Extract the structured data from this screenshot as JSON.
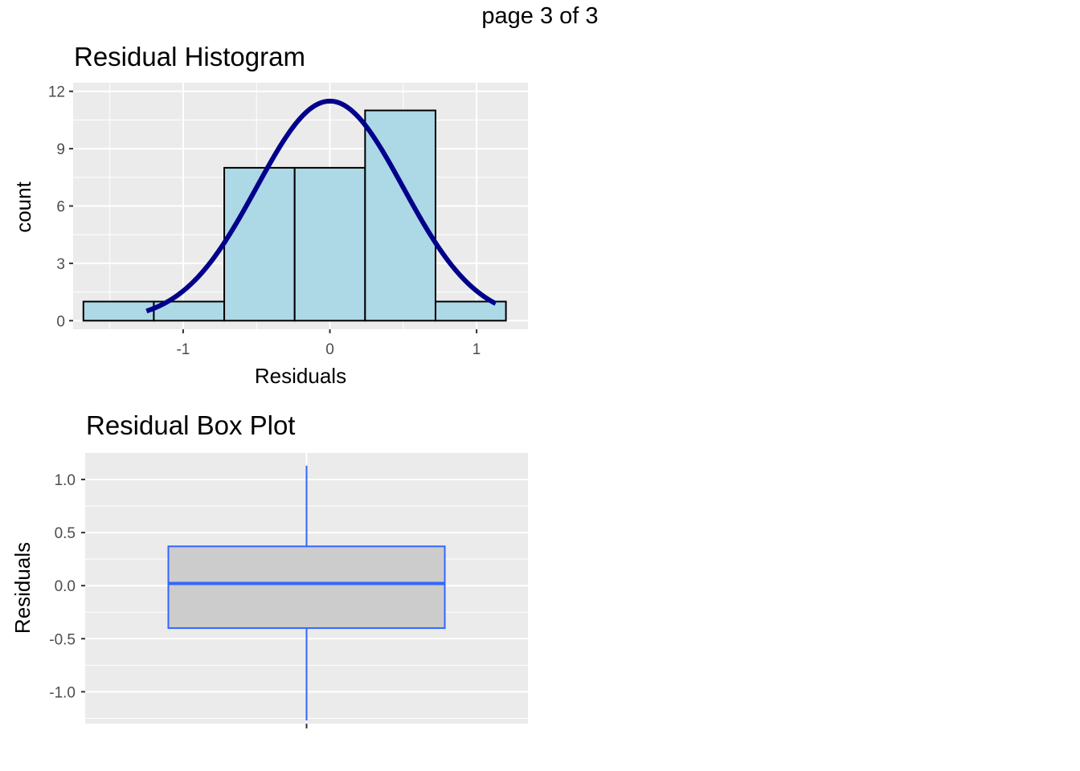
{
  "page_header": "page 3 of 3",
  "colors": {
    "panel_bg": "#ebebeb",
    "grid": "#ffffff",
    "bar_fill": "#add8e6",
    "bar_stroke": "#000000",
    "curve": "#00008b",
    "box_fill": "#cccccc",
    "box_stroke": "#3366ff",
    "tick_text": "#4d4d4d"
  },
  "chart_data": [
    {
      "type": "histogram",
      "title": "Residual Histogram",
      "xlabel": "Residuals",
      "ylabel": "count",
      "xlim": [
        -1.75,
        1.35
      ],
      "ylim": [
        -0.45,
        12.45
      ],
      "x_ticks": [
        -1,
        0,
        1
      ],
      "x_tick_labels": [
        "-1",
        "0",
        "1"
      ],
      "y_ticks": [
        0,
        3,
        6,
        9,
        12
      ],
      "y_tick_labels": [
        "0",
        "3",
        "6",
        "9",
        "12"
      ],
      "bins": [
        {
          "x0": -1.68,
          "x1": -1.2,
          "count": 1
        },
        {
          "x0": -1.2,
          "x1": -0.72,
          "count": 1
        },
        {
          "x0": -0.72,
          "x1": -0.24,
          "count": 8
        },
        {
          "x0": -0.24,
          "x1": 0.24,
          "count": 8
        },
        {
          "x0": 0.24,
          "x1": 0.72,
          "count": 11
        },
        {
          "x0": 0.72,
          "x1": 1.2,
          "count": 1
        }
      ],
      "normal_curve": {
        "mean": 0.0,
        "sd": 0.5,
        "n": 30,
        "binwidth": 0.48,
        "x_from": -1.25,
        "x_to": 1.13
      },
      "grid": true,
      "legend": "none"
    },
    {
      "type": "box",
      "title": "Residual Box Plot",
      "xlabel": "",
      "ylabel": "Residuals",
      "ylim": [
        -1.3,
        1.25
      ],
      "y_ticks": [
        -1.0,
        -0.5,
        0.0,
        0.5,
        1.0
      ],
      "y_tick_labels": [
        "-1.0",
        "-0.5",
        "0.0",
        "0.5",
        "1.0"
      ],
      "box": {
        "min": -1.27,
        "q1": -0.4,
        "median": 0.02,
        "q3": 0.37,
        "max": 1.13
      },
      "grid": true,
      "legend": "none"
    }
  ]
}
